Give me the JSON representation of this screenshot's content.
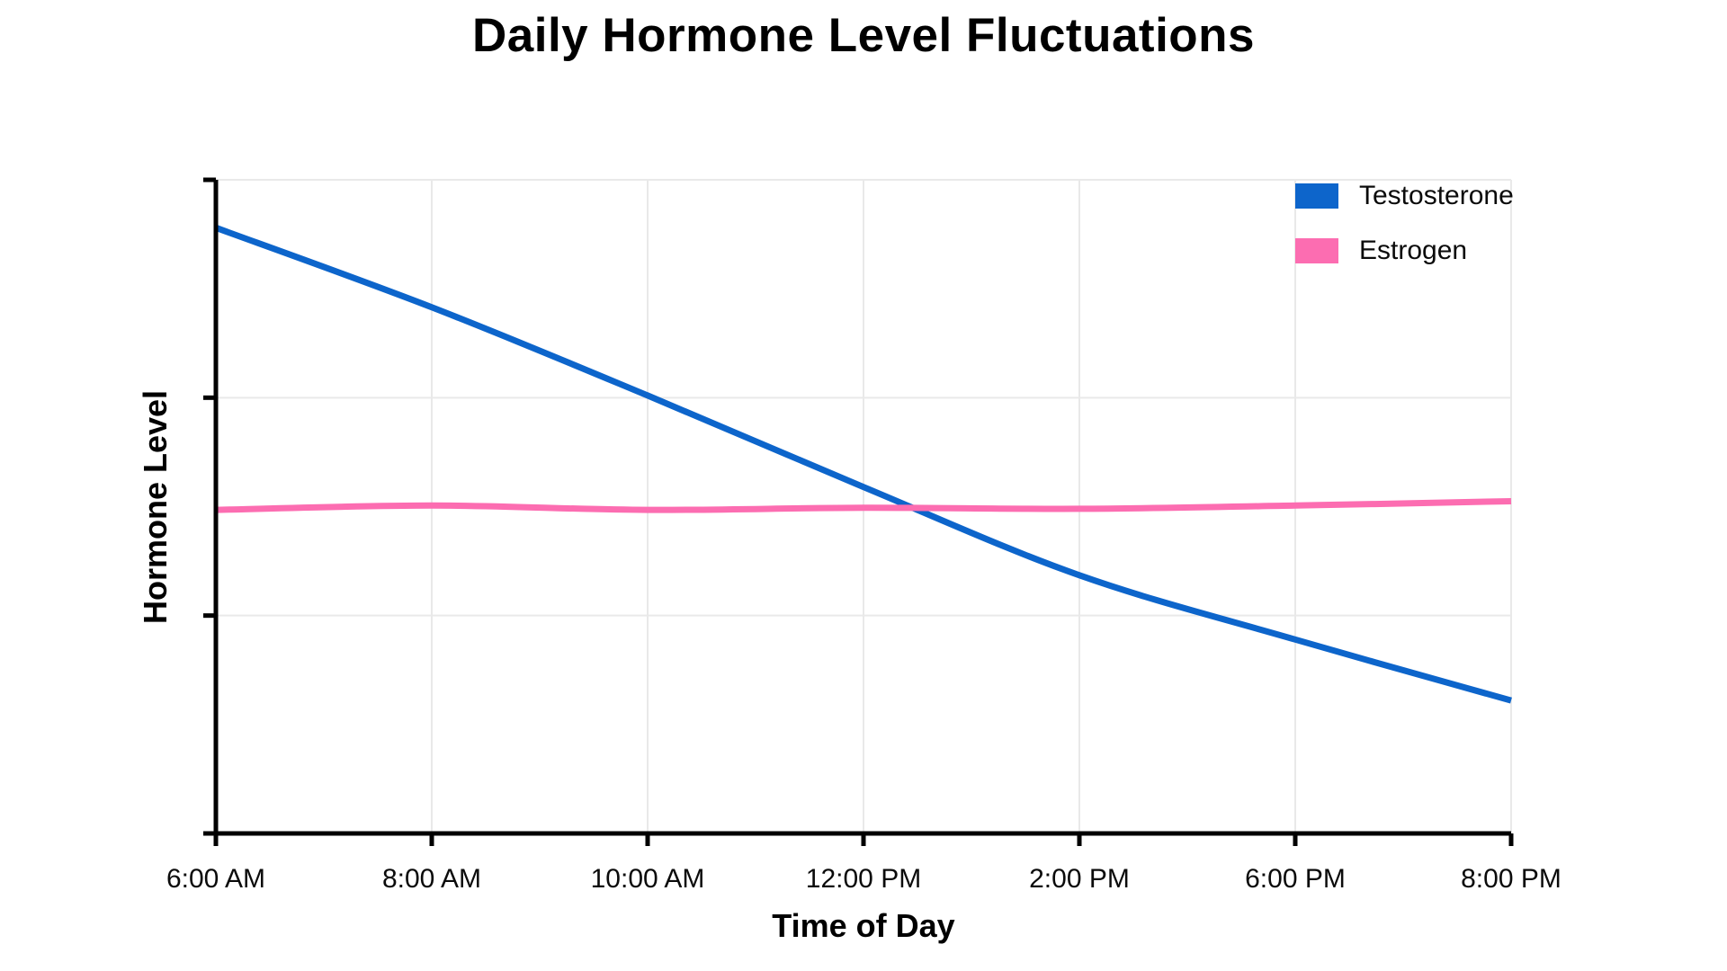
{
  "page": {
    "background_color": "#ffffff",
    "text_color": "#000000"
  },
  "chart_data": {
    "type": "line",
    "title": "Daily Hormone Level Fluctuations",
    "xlabel": "Time of Day",
    "ylabel": "Hormone Level",
    "categories": [
      "6:00 AM",
      "8:00 AM",
      "10:00 AM",
      "12:00 PM",
      "2:00 PM",
      "6:00 PM",
      "8:00 PM"
    ],
    "series": [
      {
        "name": "Testosterone",
        "color": "#0d65cb",
        "values": [
          5.56,
          4.83,
          4.02,
          3.18,
          2.37,
          1.78,
          1.22
        ]
      },
      {
        "name": "Estrogen",
        "color": "#fc6db1",
        "values": [
          2.97,
          3.01,
          2.97,
          2.99,
          2.98,
          3.01,
          3.05
        ]
      }
    ],
    "ylim": [
      0,
      6
    ],
    "y_tick_step": 2,
    "y_tick_labels_visible": false,
    "grid": true,
    "grid_color": "#e9e9e9",
    "axis_color": "#000000",
    "line_width": 7,
    "legend_position": "top-right",
    "curve": "smooth"
  }
}
